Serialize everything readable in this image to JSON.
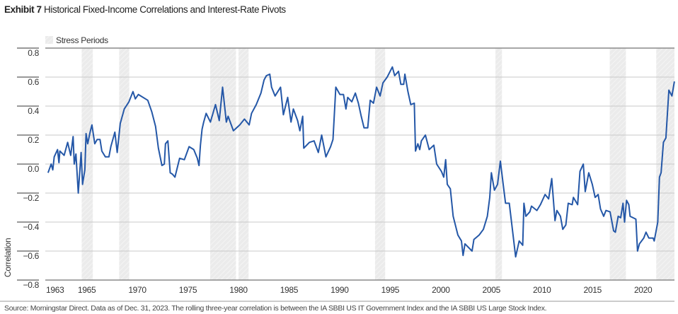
{
  "title": {
    "label": "Exhibit 7",
    "text": "Historical Fixed-Income Correlations and Interest-Rate Pivots"
  },
  "footer": {
    "source": "Source: Morningstar Direct. Data as of Dec. 31, 2023. The rolling three-year correlation is between the IA SBBI US IT Government Index and the IA SBBI US Large Stock Index."
  },
  "chart_data": {
    "type": "line",
    "title": "Historical Fixed-Income Correlations and Interest-Rate Pivots",
    "xlabel": "",
    "ylabel": "Correlation",
    "ylim": [
      -0.8,
      0.8
    ],
    "xlim": [
      1960.9,
      2023.1
    ],
    "yticks": [
      0.8,
      0.6,
      0.4,
      0.2,
      0.0,
      -0.2,
      -0.4,
      -0.6,
      -0.8
    ],
    "ytick_labels": [
      "0.8",
      "0.6",
      "0.4",
      "0.2",
      "0.0",
      "−0.2",
      "−0.4",
      "−0.6",
      "−0.8"
    ],
    "first_xtick_label": "1963",
    "xticks": [
      1965,
      1970,
      1975,
      1980,
      1985,
      1990,
      1995,
      2000,
      2005,
      2010,
      2015,
      2020
    ],
    "grid": "horizontal",
    "legend": {
      "placement": "top-left",
      "entries": [
        "Stress Periods"
      ]
    },
    "colors": {
      "line": "#2457a7",
      "stress": "#e8e8e8",
      "grid": "#c8c8c8"
    },
    "stress_periods": [
      [
        1964.5,
        1965.6
      ],
      [
        1968.2,
        1969.2
      ],
      [
        1977.2,
        1979.75
      ],
      [
        1980.0,
        1981.0
      ],
      [
        1993.5,
        1994.5
      ],
      [
        2005.4,
        2006.05
      ],
      [
        2016.7,
        2018.3
      ],
      [
        2021.3,
        2023.1
      ]
    ],
    "series": [
      {
        "x": [
          1961.17,
          1961.48,
          1961.64,
          1961.78,
          1962.11,
          1962.25,
          1962.34,
          1962.76,
          1963.11,
          1963.41,
          1963.65,
          1963.76,
          1963.93,
          1964.16,
          1964.44,
          1964.58,
          1964.81,
          1964.93,
          1965.09,
          1965.33,
          1965.51,
          1965.79,
          1966.03,
          1966.31,
          1966.49,
          1966.84,
          1967.19,
          1967.38,
          1967.78,
          1968.01,
          1968.31,
          1968.71,
          1969.17,
          1969.57,
          1969.8,
          1970.1,
          1971.03,
          1971.43,
          1971.8,
          1972.08,
          1972.43,
          1972.67,
          1972.78,
          1973.02,
          1973.25,
          1973.48,
          1973.72,
          1974.18,
          1974.65,
          1975.12,
          1975.58,
          1975.93,
          1976.1,
          1976.24,
          1976.4,
          1976.56,
          1976.8,
          1977.22,
          1977.73,
          1978.1,
          1978.43,
          1978.8,
          1978.97,
          1979.5,
          1980.13,
          1980.59,
          1981.06,
          1981.29,
          1981.76,
          1982.22,
          1982.53,
          1982.76,
          1983.09,
          1983.27,
          1983.62,
          1984.16,
          1984.44,
          1984.86,
          1985.19,
          1985.42,
          1985.84,
          1986.07,
          1986.35,
          1986.45,
          1987.01,
          1987.47,
          1987.89,
          1988.22,
          1988.64,
          1989.1,
          1989.34,
          1989.62,
          1990.03,
          1990.38,
          1990.62,
          1990.8,
          1991.2,
          1991.55,
          1991.85,
          1992.13,
          1992.41,
          1992.78,
          1993.02,
          1993.34,
          1993.65,
          1994.0,
          1994.28,
          1994.7,
          1995.21,
          1995.44,
          1995.82,
          1996.05,
          1996.33,
          1996.45,
          1996.75,
          1997.03,
          1997.38,
          1997.5,
          1997.73,
          1997.92,
          1998.08,
          1998.48,
          1998.85,
          1999.31,
          1999.59,
          2000.06,
          2000.29,
          2000.48,
          2000.64,
          2000.94,
          2001.22,
          2001.69,
          2002.04,
          2002.2,
          2002.39,
          2003.09,
          2003.27,
          2003.79,
          2004.21,
          2004.6,
          2004.84,
          2005.0,
          2005.3,
          2005.61,
          2005.89,
          2006.17,
          2006.4,
          2006.77,
          2007.01,
          2007.4,
          2007.75,
          2008.1,
          2008.22,
          2008.41,
          2008.8,
          2008.97,
          2009.5,
          2009.85,
          2010.31,
          2010.66,
          2010.97,
          2011.29,
          2011.48,
          2011.83,
          2012.06,
          2012.36,
          2012.6,
          2012.99,
          2013.11,
          2013.53,
          2013.76,
          2014.09,
          2014.28,
          2014.63,
          2014.98,
          2015.26,
          2015.56,
          2015.79,
          2016.1,
          2016.33,
          2016.73,
          2017.08,
          2017.26,
          2017.54,
          2017.78,
          2018.01,
          2018.17,
          2018.36,
          2018.59,
          2018.71,
          2019.01,
          2019.29,
          2019.45,
          2019.64,
          2020.06,
          2020.29,
          2020.57,
          2020.99,
          2021.1,
          2021.45,
          2021.62,
          2021.78,
          2022.01,
          2022.25,
          2022.55,
          2022.85,
          2023.09
        ],
        "y": [
          -0.06,
          0.0,
          -0.04,
          0.05,
          0.1,
          0.01,
          0.09,
          0.06,
          0.15,
          0.06,
          0.19,
          0.0,
          0.07,
          -0.2,
          0.08,
          -0.14,
          -0.04,
          0.21,
          0.14,
          0.22,
          0.27,
          0.14,
          0.17,
          0.17,
          0.09,
          0.05,
          0.05,
          0.12,
          0.22,
          0.08,
          0.28,
          0.38,
          0.43,
          0.5,
          0.45,
          0.48,
          0.44,
          0.36,
          0.26,
          0.11,
          -0.01,
          0.0,
          0.14,
          0.16,
          -0.06,
          -0.07,
          -0.09,
          0.04,
          0.03,
          0.12,
          0.1,
          0.04,
          -0.01,
          0.13,
          0.24,
          0.29,
          0.35,
          0.29,
          0.41,
          0.3,
          0.53,
          0.29,
          0.33,
          0.23,
          0.27,
          0.31,
          0.27,
          0.35,
          0.41,
          0.49,
          0.58,
          0.61,
          0.62,
          0.53,
          0.47,
          0.53,
          0.34,
          0.46,
          0.29,
          0.38,
          0.3,
          0.23,
          0.33,
          0.11,
          0.15,
          0.16,
          0.08,
          0.2,
          0.05,
          0.12,
          0.17,
          0.53,
          0.48,
          0.48,
          0.38,
          0.46,
          0.43,
          0.49,
          0.42,
          0.33,
          0.25,
          0.25,
          0.44,
          0.42,
          0.53,
          0.47,
          0.56,
          0.6,
          0.67,
          0.61,
          0.64,
          0.55,
          0.55,
          0.62,
          0.5,
          0.41,
          0.42,
          0.09,
          0.14,
          0.1,
          0.16,
          0.2,
          0.1,
          0.13,
          0.0,
          -0.05,
          -0.09,
          0.03,
          -0.14,
          -0.17,
          -0.36,
          -0.49,
          -0.53,
          -0.63,
          -0.55,
          -0.6,
          -0.52,
          -0.49,
          -0.45,
          -0.36,
          -0.23,
          -0.06,
          -0.18,
          -0.14,
          0.02,
          -0.14,
          -0.27,
          -0.27,
          -0.41,
          -0.64,
          -0.53,
          -0.56,
          -0.27,
          -0.36,
          -0.33,
          -0.29,
          -0.32,
          -0.28,
          -0.21,
          -0.24,
          -0.1,
          -0.39,
          -0.32,
          -0.36,
          -0.45,
          -0.42,
          -0.27,
          -0.28,
          -0.23,
          -0.28,
          -0.05,
          0.0,
          -0.19,
          -0.06,
          -0.14,
          -0.23,
          -0.21,
          -0.31,
          -0.36,
          -0.32,
          -0.33,
          -0.46,
          -0.47,
          -0.36,
          -0.37,
          -0.27,
          -0.4,
          -0.25,
          -0.28,
          -0.36,
          -0.37,
          -0.38,
          -0.6,
          -0.55,
          -0.51,
          -0.47,
          -0.51,
          -0.51,
          -0.53,
          -0.4,
          -0.09,
          -0.06,
          0.15,
          0.18,
          0.51,
          0.47,
          0.57
        ]
      }
    ]
  }
}
